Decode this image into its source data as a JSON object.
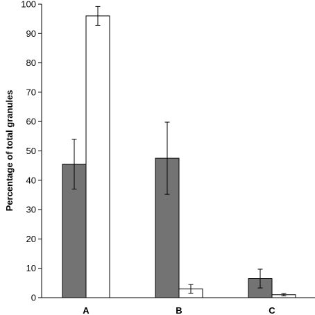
{
  "chart_data": {
    "type": "bar",
    "title": "",
    "xlabel": "",
    "ylabel": "Percentage of total granules",
    "ylim": [
      0,
      100
    ],
    "yticks": [
      0,
      10,
      20,
      30,
      40,
      50,
      60,
      70,
      80,
      90,
      100
    ],
    "categories": [
      "A",
      "B",
      "C"
    ],
    "grid": false,
    "legend": "none",
    "series": [
      {
        "color": "#737373",
        "values": [
          45.5,
          47.5,
          6.5
        ],
        "error": [
          8.5,
          12.3,
          3.2
        ]
      },
      {
        "color": "#ffffff",
        "values": [
          96,
          3,
          1
        ],
        "error": [
          3.2,
          1.5,
          0.4
        ]
      }
    ]
  }
}
